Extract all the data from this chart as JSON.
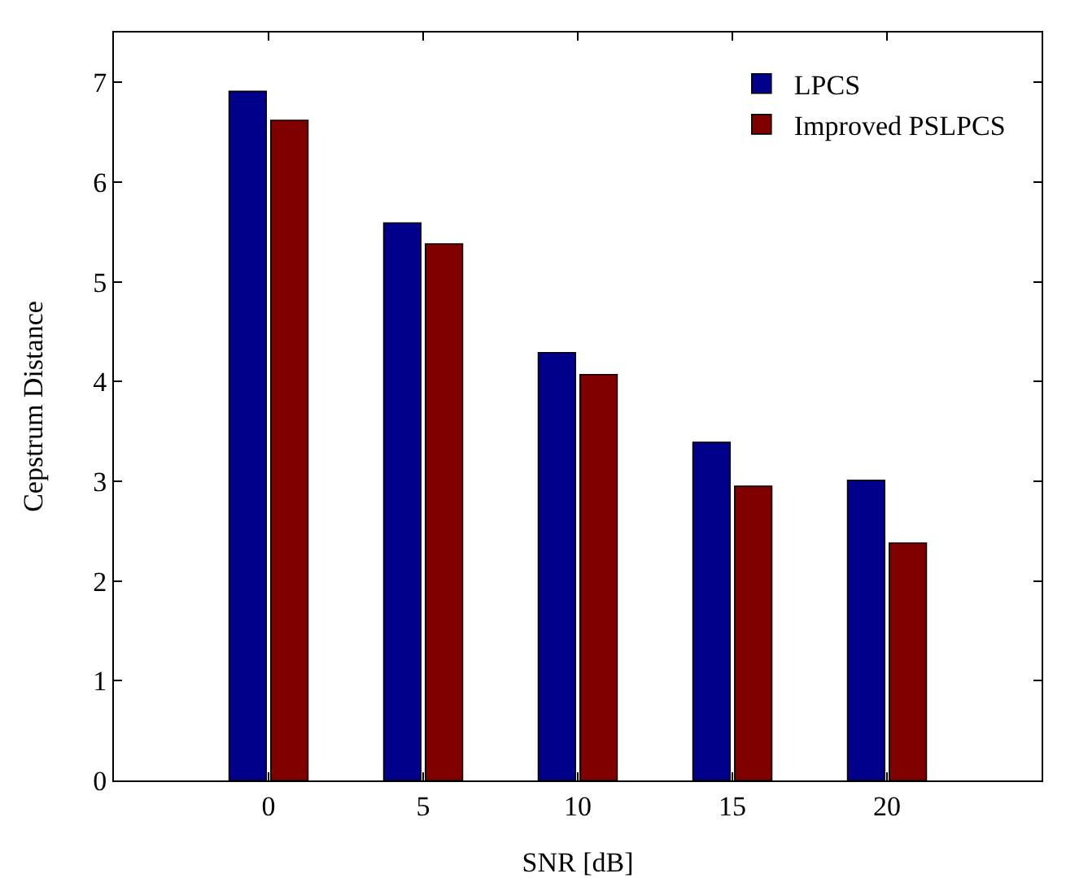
{
  "chart_data": {
    "type": "bar",
    "xlabel": "SNR [dB]",
    "ylabel": "Cepstrum Distance",
    "x": [
      0,
      5,
      10,
      15,
      20
    ],
    "series": [
      {
        "name": "LPCS",
        "color": "#00008b",
        "values": [
          6.91,
          5.59,
          4.29,
          3.39,
          3.01
        ]
      },
      {
        "name": "Improved PSLPCS",
        "color": "#800000",
        "values": [
          6.62,
          5.38,
          4.07,
          2.95,
          2.38
        ]
      }
    ],
    "xlim": [
      -5,
      25
    ],
    "xticks": [
      0,
      5,
      10,
      15,
      20
    ],
    "ylim": [
      0,
      7.5
    ],
    "yticks": [
      0,
      1,
      2,
      3,
      4,
      5,
      6,
      7
    ],
    "grid": false,
    "legend": "top right"
  }
}
